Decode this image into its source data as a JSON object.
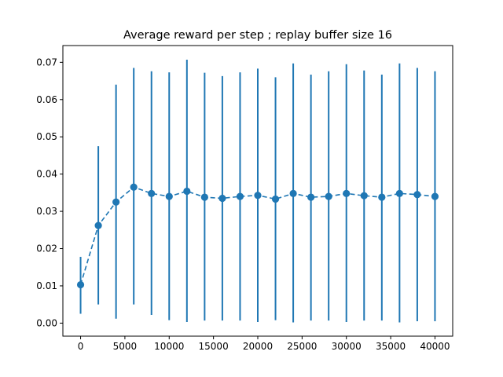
{
  "chart_data": {
    "type": "line",
    "title": "Average reward per step ; replay buffer size 16",
    "xlabel": "",
    "ylabel": "",
    "xlim": [
      -2000,
      42000
    ],
    "ylim": [
      -0.0035,
      0.0745
    ],
    "grid": false,
    "legend": "none",
    "colors": {
      "series": "#1f77b4",
      "axes": "#000000",
      "background": "#ffffff"
    },
    "x_ticks": [
      0,
      5000,
      10000,
      15000,
      20000,
      25000,
      30000,
      35000,
      40000
    ],
    "y_ticks": [
      0.0,
      0.01,
      0.02,
      0.03,
      0.04,
      0.05,
      0.06,
      0.07
    ],
    "x_tick_labels": [
      "0",
      "5000",
      "10000",
      "15000",
      "20000",
      "25000",
      "30000",
      "35000",
      "40000"
    ],
    "y_tick_labels": [
      "0.00",
      "0.01",
      "0.02",
      "0.03",
      "0.04",
      "0.05",
      "0.06",
      "0.07"
    ],
    "series": [
      {
        "line_style": "dashed",
        "marker": "circle",
        "error_bars": true,
        "x": [
          0,
          2000,
          4000,
          6000,
          8000,
          10000,
          12000,
          14000,
          16000,
          18000,
          20000,
          22000,
          24000,
          26000,
          28000,
          30000,
          32000,
          34000,
          36000,
          38000,
          40000
        ],
        "y": [
          0.0103,
          0.0262,
          0.0325,
          0.0365,
          0.0348,
          0.034,
          0.0354,
          0.0338,
          0.0335,
          0.034,
          0.0343,
          0.0333,
          0.0348,
          0.0338,
          0.034,
          0.0348,
          0.0342,
          0.0338,
          0.0348,
          0.0345,
          0.034
        ],
        "y_low": [
          0.0025,
          0.005,
          0.0012,
          0.005,
          0.0022,
          0.0008,
          0.0003,
          0.0007,
          0.0007,
          0.0007,
          0.0003,
          0.0008,
          0.0002,
          0.0007,
          0.0007,
          0.0003,
          0.0007,
          0.0007,
          0.0002,
          0.0005,
          0.0005
        ],
        "y_high": [
          0.0178,
          0.0475,
          0.064,
          0.0685,
          0.0676,
          0.0673,
          0.0707,
          0.0672,
          0.0663,
          0.0673,
          0.0683,
          0.066,
          0.0697,
          0.0667,
          0.0676,
          0.0695,
          0.0678,
          0.0667,
          0.0697,
          0.0685,
          0.0676
        ]
      }
    ]
  }
}
